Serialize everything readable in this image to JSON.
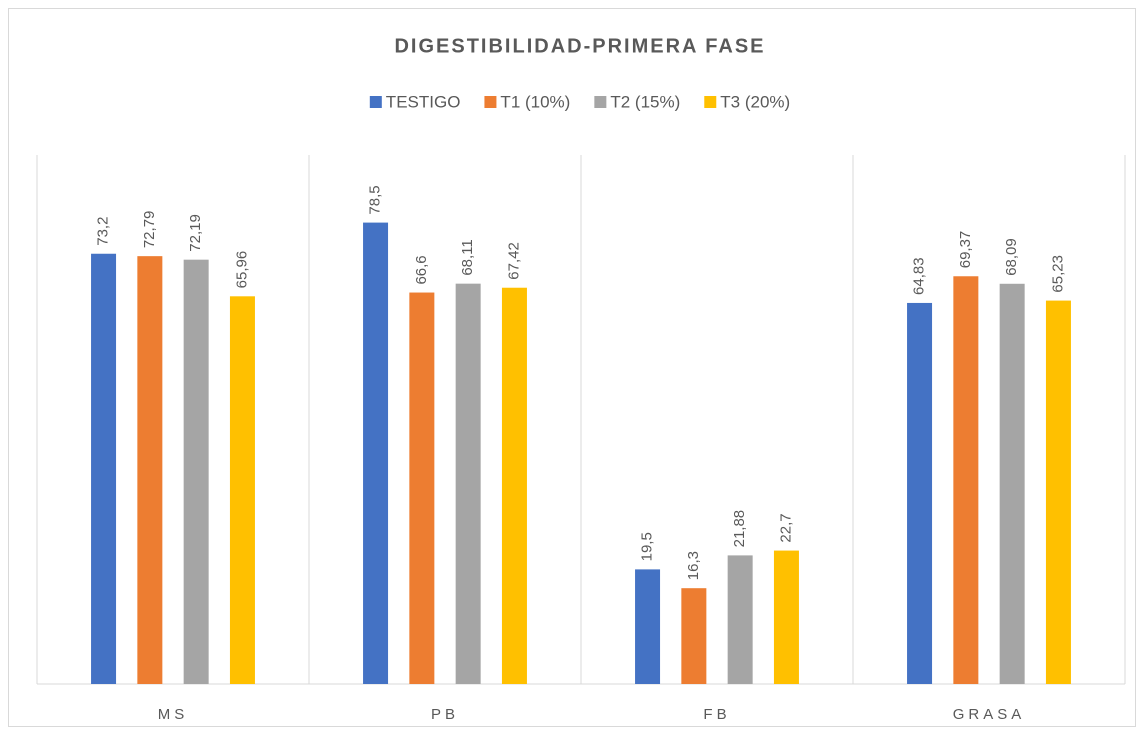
{
  "chart_data": {
    "type": "bar",
    "title": "DIGESTIBILIDAD-PRIMERA FASE",
    "categories": [
      "MS",
      "PB",
      "FB",
      "GRASA"
    ],
    "series": [
      {
        "name": "TESTIGO",
        "color": "#4472c4",
        "values": [
          73.2,
          78.5,
          19.5,
          64.83
        ],
        "value_labels": [
          "73,2",
          "78,5",
          "19,5",
          "64,83"
        ]
      },
      {
        "name": "T1 (10%)",
        "color": "#ed7d31",
        "values": [
          72.79,
          66.6,
          16.3,
          69.37
        ],
        "value_labels": [
          "72,79",
          "66,6",
          "16,3",
          "69,37"
        ]
      },
      {
        "name": "T2 (15%)",
        "color": "#a5a5a5",
        "values": [
          72.19,
          68.11,
          21.88,
          68.09
        ],
        "value_labels": [
          "72,19",
          "68,11",
          "21,88",
          "68,09"
        ]
      },
      {
        "name": "T3 (20%)",
        "color": "#ffc000",
        "values": [
          65.96,
          67.42,
          22.7,
          65.23
        ],
        "value_labels": [
          "65,96",
          "67,42",
          "22,7",
          "65,23"
        ]
      }
    ],
    "ylim": [
      0,
      90
    ],
    "legend": "top"
  }
}
